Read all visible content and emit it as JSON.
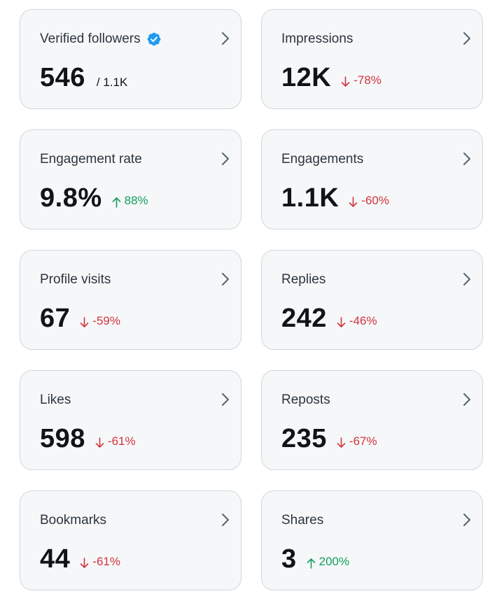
{
  "cards": [
    {
      "title": "Verified followers",
      "value": "546",
      "total": "/ 1.1K",
      "delta": "",
      "direction": "",
      "verified": true
    },
    {
      "title": "Impressions",
      "value": "12K",
      "total": "",
      "delta": "-78%",
      "direction": "down"
    },
    {
      "title": "Engagement rate",
      "value": "9.8%",
      "total": "",
      "delta": "88%",
      "direction": "up"
    },
    {
      "title": "Engagements",
      "value": "1.1K",
      "total": "",
      "delta": "-60%",
      "direction": "down"
    },
    {
      "title": "Profile visits",
      "value": "67",
      "total": "",
      "delta": "-59%",
      "direction": "down"
    },
    {
      "title": "Replies",
      "value": "242",
      "total": "",
      "delta": "-46%",
      "direction": "down"
    },
    {
      "title": "Likes",
      "value": "598",
      "total": "",
      "delta": "-61%",
      "direction": "down"
    },
    {
      "title": "Reposts",
      "value": "235",
      "total": "",
      "delta": "-67%",
      "direction": "down"
    },
    {
      "title": "Bookmarks",
      "value": "44",
      "total": "",
      "delta": "-61%",
      "direction": "down"
    },
    {
      "title": "Shares",
      "value": "3",
      "total": "",
      "delta": "200%",
      "direction": "up"
    }
  ],
  "colors": {
    "up": "#119f5f",
    "down": "#d1343f",
    "verified_badge": "#1d9bf0",
    "chevron": "#536471"
  },
  "icons": {
    "verified": "verified-badge-icon",
    "chevron": "chevron-right-icon",
    "arrow_up": "arrow-up-icon",
    "arrow_down": "arrow-down-icon"
  }
}
